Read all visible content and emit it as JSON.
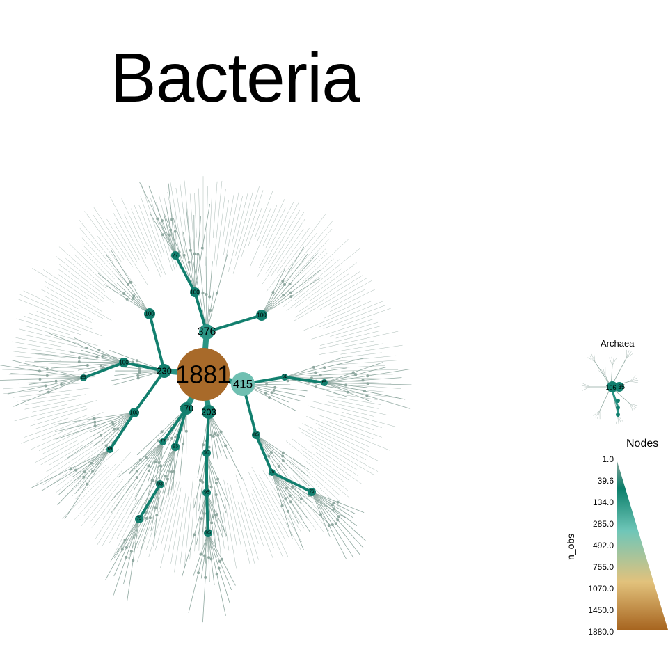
{
  "title": "Bacteria",
  "inset_title": "Archaea",
  "legend": {
    "title": "Nodes",
    "axis_label": "n_obs",
    "ticks": [
      "1.0",
      "39.6",
      "134.0",
      "285.0",
      "492.0",
      "755.0",
      "1070.0",
      "1450.0",
      "1880.0"
    ],
    "colors": [
      "#8fa8a0",
      "#0b7e6a",
      "#6fc6b8",
      "#e2c27c",
      "#a76520"
    ]
  },
  "tree": {
    "root": "1881",
    "branch_labels": [
      "376",
      "415",
      "230",
      "203",
      "170",
      "100",
      "100",
      "100",
      "100",
      "100",
      "85",
      "77",
      "95",
      "95",
      "95",
      "93",
      "93",
      "85",
      "75",
      "76",
      "73",
      "69",
      "61",
      "65",
      "77"
    ],
    "archaea_labels": [
      "106",
      "35"
    ]
  }
}
